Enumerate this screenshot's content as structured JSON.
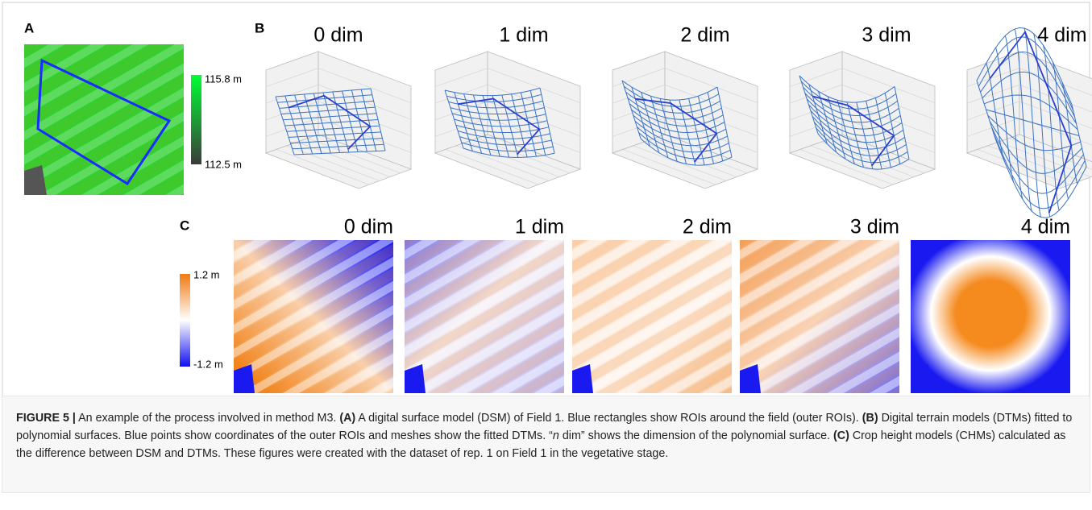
{
  "panel_a": {
    "label": "A",
    "colorbar": {
      "max_label": "115.8 m",
      "min_label": "112.5 m"
    }
  },
  "panel_b": {
    "label": "B",
    "titles": [
      "0 dim",
      "1 dim",
      "2 dim",
      "3 dim",
      "4 dim"
    ]
  },
  "panel_c": {
    "label": "C",
    "titles": [
      "0 dim",
      "1 dim",
      "2 dim",
      "3 dim",
      "4 dim"
    ],
    "colorbar": {
      "max_label": "1.2 m",
      "min_label": "-1.2 m"
    }
  },
  "caption": {
    "figure_label": "FIGURE 5 |",
    "intro": " An example of the process involved in method M3. ",
    "a_label": "(A)",
    "a_text": " A digital surface model (DSM) of Field 1. Blue rectangles show ROIs around the field (outer ROIs). ",
    "b_label": "(B)",
    "b_text_before": " Digital terrain models (DTMs) fitted to polynomial surfaces. Blue points show coordinates of the outer ROIs and meshes show the fitted DTMs. “",
    "b_italic": "n",
    "b_text_after": " dim” shows the dimension of the polynomial surface. ",
    "c_label": "(C)",
    "c_text": " Crop height models (CHMs) calculated as the difference between DSM and DTMs. These figures were created with the dataset of rep. 1 on Field 1 in the vegetative stage."
  }
}
